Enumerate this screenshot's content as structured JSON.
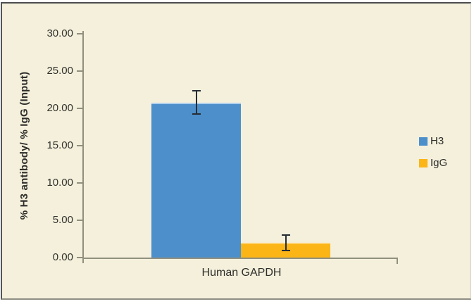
{
  "panel": {
    "background": "#f4f0dc",
    "border_color": "#4b4c4e"
  },
  "chart_data": {
    "type": "bar",
    "title": "",
    "categories": [
      "Human GAPDH"
    ],
    "series": [
      {
        "name": "H3",
        "color": "#4d8fcb",
        "highlight": "#b0d0eb",
        "values": [
          20.8
        ],
        "error_plus": [
          1.6
        ],
        "error_minus": [
          1.6
        ]
      },
      {
        "name": "IgG",
        "color": "#fbb517",
        "highlight": "#fdd370",
        "values": [
          2.0
        ],
        "error_plus": [
          1.0
        ],
        "error_minus": [
          1.1
        ]
      }
    ],
    "xlabel": "Human GAPDH",
    "ylabel": "% H3 antibody/ % IgG (Input)",
    "ylim": [
      0,
      30
    ],
    "y_ticks": [
      30,
      25,
      20,
      15,
      10,
      5,
      0
    ],
    "y_tick_labels": [
      "30.00",
      "25.00",
      "20.00",
      "15.00",
      "10.00",
      "5.00",
      "0.00"
    ],
    "grid": false,
    "legend_position": "right",
    "legend_labels": [
      "H3",
      "IgG"
    ],
    "axis_color": "#91907f",
    "error_bar_color": "#252d35",
    "text_color": "#2e2e2a"
  }
}
